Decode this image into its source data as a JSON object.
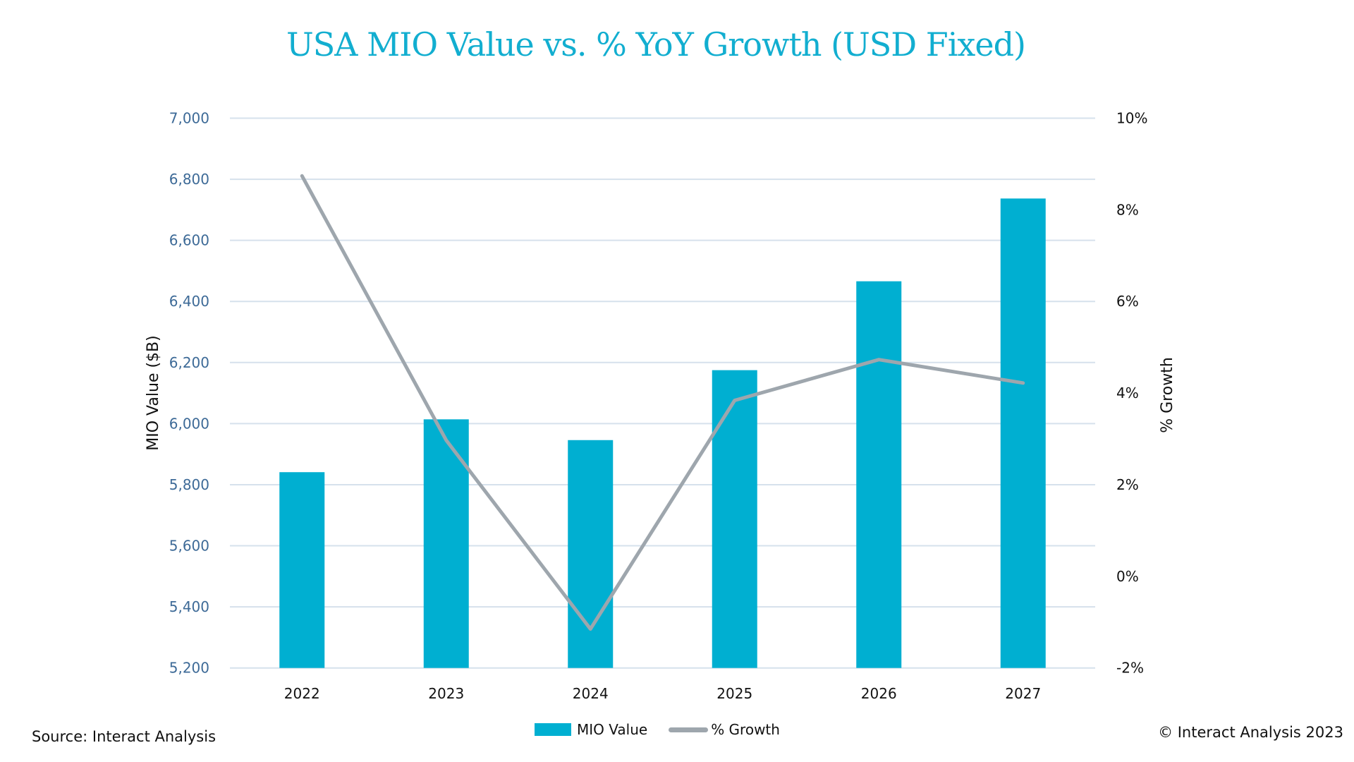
{
  "chart_data": {
    "type": "bar",
    "title": "USA MIO Value vs. % YoY Growth (USD Fixed)",
    "categories": [
      "2022",
      "2023",
      "2024",
      "2025",
      "2026",
      "2027"
    ],
    "series": [
      {
        "name": "MIO Value",
        "type": "bar",
        "axis": "left",
        "color": "#00afd1",
        "values": [
          5841,
          6014,
          5946,
          6175,
          6466,
          6737
        ]
      },
      {
        "name": "% Growth",
        "type": "line",
        "axis": "right",
        "color": "#9ea6ad",
        "values": [
          8.74,
          2.97,
          -1.15,
          3.84,
          4.73,
          4.22
        ]
      }
    ],
    "ylabel": "MIO Value ($B)",
    "ylim": [
      5200,
      7000
    ],
    "yticks": [
      5200,
      5400,
      5600,
      5800,
      6000,
      6200,
      6400,
      6600,
      6800,
      7000
    ],
    "ytick_labels": [
      "5,200",
      "5,400",
      "5,600",
      "5,800",
      "6,000",
      "6,200",
      "6,400",
      "6,600",
      "6,800",
      "7,000"
    ],
    "y2label": "% Growth",
    "y2lim": [
      -2,
      10
    ],
    "y2ticks": [
      -2,
      0,
      2,
      4,
      6,
      8,
      10
    ],
    "y2tick_labels": [
      "-2%",
      "0%",
      "2%",
      "4%",
      "6%",
      "8%",
      "10%"
    ],
    "grid": true,
    "legend": {
      "placement": "bottom-center",
      "entries": [
        "MIO Value",
        "% Growth"
      ]
    }
  },
  "footer": {
    "source": "Source: Interact Analysis",
    "copyright": "© Interact Analysis 2023"
  }
}
